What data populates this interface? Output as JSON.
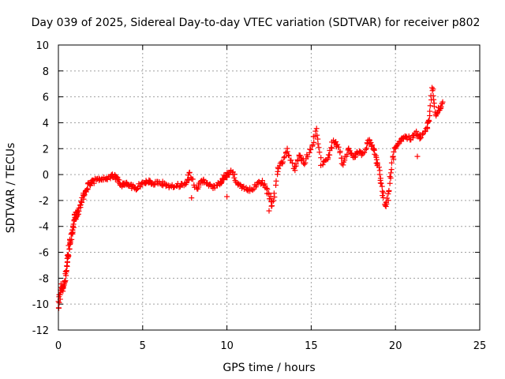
{
  "chart_data": {
    "type": "scatter",
    "title": "Day 039 of 2025, Sidereal Day-to-day VTEC variation (SDTVAR) for receiver p802",
    "xlabel": "GPS time / hours",
    "ylabel": "SDTVAR / TECUs",
    "xlim": [
      0,
      25
    ],
    "ylim": [
      -12,
      10
    ],
    "xticks": [
      0,
      5,
      10,
      15,
      20,
      25
    ],
    "yticks": [
      -12,
      -10,
      -8,
      -6,
      -4,
      -2,
      0,
      2,
      4,
      6,
      8,
      10
    ],
    "grid": true,
    "marker": "+",
    "color": "#ff0000",
    "series": [
      {
        "name": "SDTVAR",
        "trend": [
          [
            0.0,
            -10.2
          ],
          [
            0.1,
            -9.2
          ],
          [
            0.2,
            -8.6
          ],
          [
            0.3,
            -8.9
          ],
          [
            0.4,
            -8.0
          ],
          [
            0.5,
            -7.2
          ],
          [
            0.6,
            -6.0
          ],
          [
            0.7,
            -5.2
          ],
          [
            0.8,
            -4.5
          ],
          [
            0.9,
            -3.8
          ],
          [
            1.0,
            -3.3
          ],
          [
            1.1,
            -3.0
          ],
          [
            1.2,
            -2.7
          ],
          [
            1.4,
            -2.0
          ],
          [
            1.6,
            -1.3
          ],
          [
            1.8,
            -0.8
          ],
          [
            2.0,
            -0.6
          ],
          [
            2.3,
            -0.4
          ],
          [
            2.6,
            -0.35
          ],
          [
            3.0,
            -0.25
          ],
          [
            3.3,
            -0.1
          ],
          [
            3.5,
            -0.35
          ],
          [
            3.8,
            -0.9
          ],
          [
            4.0,
            -0.6
          ],
          [
            4.3,
            -0.9
          ],
          [
            4.6,
            -1.0
          ],
          [
            5.0,
            -0.7
          ],
          [
            5.3,
            -0.5
          ],
          [
            5.6,
            -0.7
          ],
          [
            6.0,
            -0.6
          ],
          [
            6.4,
            -0.8
          ],
          [
            6.8,
            -1.0
          ],
          [
            7.2,
            -0.8
          ],
          [
            7.6,
            -0.7
          ],
          [
            7.8,
            0.1
          ],
          [
            8.2,
            -1.2
          ],
          [
            8.5,
            -0.5
          ],
          [
            8.8,
            -0.6
          ],
          [
            9.2,
            -1.0
          ],
          [
            9.6,
            -0.7
          ],
          [
            9.8,
            -0.3
          ],
          [
            10.0,
            0.0
          ],
          [
            10.3,
            0.2
          ],
          [
            10.6,
            -0.6
          ],
          [
            11.0,
            -1.0
          ],
          [
            11.4,
            -1.2
          ],
          [
            11.8,
            -0.7
          ],
          [
            12.2,
            -0.6
          ],
          [
            12.5,
            -1.6
          ],
          [
            12.7,
            -2.5
          ],
          [
            13.0,
            0.3
          ],
          [
            13.3,
            1.0
          ],
          [
            13.6,
            1.9
          ],
          [
            14.0,
            0.3
          ],
          [
            14.3,
            1.5
          ],
          [
            14.6,
            0.9
          ],
          [
            15.0,
            2.0
          ],
          [
            15.3,
            3.5
          ],
          [
            15.6,
            0.8
          ],
          [
            16.0,
            1.2
          ],
          [
            16.3,
            2.6
          ],
          [
            16.6,
            2.2
          ],
          [
            16.9,
            0.8
          ],
          [
            17.2,
            2.0
          ],
          [
            17.5,
            1.4
          ],
          [
            17.8,
            1.7
          ],
          [
            18.1,
            1.6
          ],
          [
            18.4,
            2.6
          ],
          [
            18.6,
            2.3
          ],
          [
            18.8,
            1.6
          ],
          [
            19.0,
            0.5
          ],
          [
            19.2,
            -1.0
          ],
          [
            19.4,
            -2.5
          ],
          [
            19.6,
            -1.5
          ],
          [
            19.8,
            1.0
          ],
          [
            20.0,
            2.1
          ],
          [
            20.3,
            2.6
          ],
          [
            20.6,
            2.9
          ],
          [
            20.9,
            2.7
          ],
          [
            21.2,
            3.2
          ],
          [
            21.5,
            2.8
          ],
          [
            21.8,
            3.3
          ],
          [
            22.0,
            4.3
          ],
          [
            22.2,
            6.8
          ],
          [
            22.4,
            4.5
          ],
          [
            22.6,
            5.1
          ],
          [
            22.8,
            5.6
          ]
        ],
        "dropouts": [
          [
            7.9,
            -1.8
          ],
          [
            12.5,
            -2.8
          ],
          [
            10.0,
            -1.7
          ],
          [
            21.3,
            1.4
          ]
        ]
      }
    ]
  }
}
